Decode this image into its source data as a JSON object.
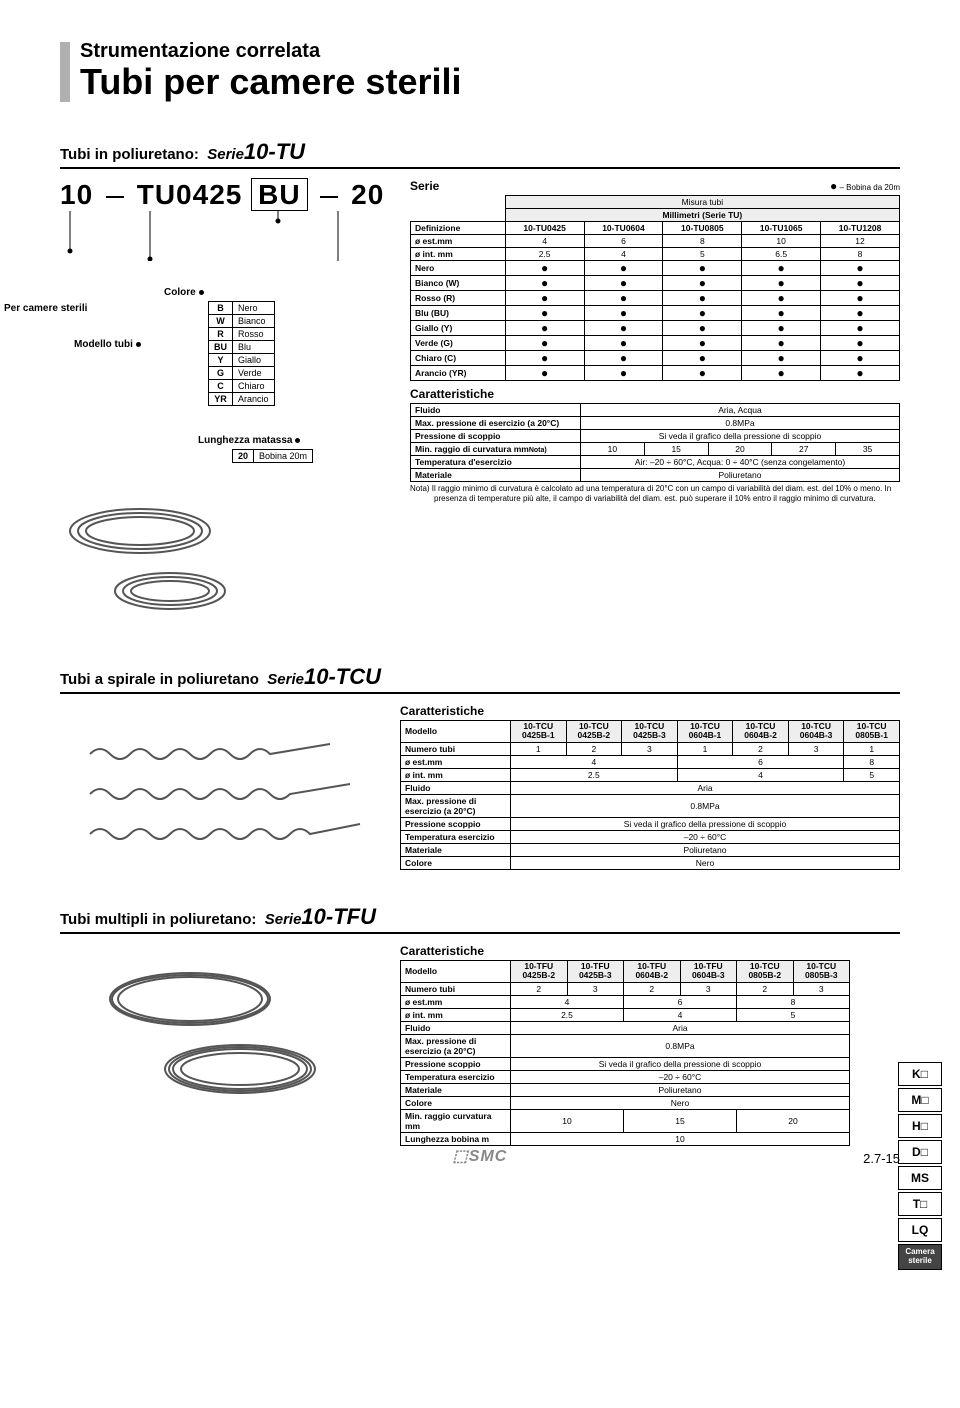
{
  "header": {
    "supertitle": "Strumentazione correlata",
    "title": "Tubi per camere sterili"
  },
  "section1": {
    "heading_prefix": "Tubi in poliuretano:",
    "series_label": "Serie",
    "series_code": "10-TU",
    "partcode": {
      "a": "10",
      "b": "TU0425",
      "c": "BU",
      "d": "20"
    },
    "callouts": {
      "per_camere": "Per camere sterili",
      "modello": "Modello tubi",
      "colore": "Colore",
      "lunghezza": "Lunghezza matassa"
    },
    "color_table": {
      "rows": [
        [
          "B",
          "Nero"
        ],
        [
          "W",
          "Bianco"
        ],
        [
          "R",
          "Rosso"
        ],
        [
          "BU",
          "Blu"
        ],
        [
          "Y",
          "Giallo"
        ],
        [
          "G",
          "Verde"
        ],
        [
          "C",
          "Chiaro"
        ],
        [
          "YR",
          "Arancio"
        ]
      ]
    },
    "length_table": {
      "rows": [
        [
          "20",
          "Bobina 20m"
        ]
      ]
    },
    "serie_table": {
      "title": "Serie",
      "bobina_note": "– Bobina da 20m",
      "misura": "Misura tubi",
      "millimetri": "Millimetri (Serie  TU)",
      "cols": [
        "10-TU0425",
        "10-TU0604",
        "10-TU0805",
        "10-TU1065",
        "10-TU1208"
      ],
      "definizione": "Definizione",
      "est": "ø est.mm",
      "est_vals": [
        "4",
        "6",
        "8",
        "10",
        "12"
      ],
      "int": "ø int. mm",
      "int_vals": [
        "2.5",
        "4",
        "5",
        "6.5",
        "8"
      ],
      "color_rows": [
        "Nero",
        "Bianco (W)",
        "Rosso (R)",
        "Blu (BU)",
        "Giallo (Y)",
        "Verde (G)",
        "Chiaro (C)",
        "Arancio (YR)"
      ]
    },
    "char_table": {
      "title": "Caratteristiche",
      "rows": [
        {
          "h": "Fluido",
          "span": "Aria, Acqua"
        },
        {
          "h": "Max. pressione di esercizio (a 20°C)",
          "span": "0.8MPa"
        },
        {
          "h": "Pressione di scoppio",
          "span": "Si veda il grafico della pressione di scoppio"
        },
        {
          "h": "Min. raggio di curvatura  mm",
          "sup": "Nota)",
          "vals": [
            "10",
            "15",
            "20",
            "27",
            "35"
          ]
        },
        {
          "h": "Temperatura d'esercizio",
          "span": "Air: –20 ÷ 60°C, Acqua: 0 ÷ 40°C (senza congelamento)"
        },
        {
          "h": "Materiale",
          "span": "Poliuretano"
        }
      ],
      "note": "Nota) Il raggio minimo di curvatura è calcolato ad una temperatura di 20°C con un campo di variabilità del diam. est. del 10% o meno. In presenza di temperature più alte, il campo di variabilità del diam. est. può superare il 10% entro il raggio minimo di curvatura."
    }
  },
  "section2": {
    "heading_prefix": "Tubi a spirale in poliuretano",
    "series_label": "Serie",
    "series_code": "10-TCU",
    "char_title": "Caratteristiche",
    "modello": "Modello",
    "cols": [
      "10-TCU 0425B-1",
      "10-TCU 0425B-2",
      "10-TCU 0425B-3",
      "10-TCU 0604B-1",
      "10-TCU 0604B-2",
      "10-TCU 0604B-3",
      "10-TCU 0805B-1"
    ],
    "rows": [
      {
        "h": "Numero tubi",
        "vals": [
          "1",
          "2",
          "3",
          "1",
          "2",
          "3",
          "1"
        ]
      },
      {
        "h": "ø est.mm",
        "spans": [
          {
            "v": "4",
            "c": 3
          },
          {
            "v": "6",
            "c": 3
          },
          {
            "v": "8",
            "c": 1
          }
        ]
      },
      {
        "h": "ø int. mm",
        "spans": [
          {
            "v": "2.5",
            "c": 3
          },
          {
            "v": "4",
            "c": 3
          },
          {
            "v": "5",
            "c": 1
          }
        ]
      },
      {
        "h": "Fluido",
        "full": "Aria"
      },
      {
        "h": "Max. pressione di esercizio (a 20°C)",
        "full": "0.8MPa"
      },
      {
        "h": "Pressione scoppio",
        "full": "Si veda il grafico della pressione di scoppio"
      },
      {
        "h": "Temperatura esercizio",
        "full": "–20 ÷ 60°C"
      },
      {
        "h": "Materiale",
        "full": "Poliuretano"
      },
      {
        "h": "Colore",
        "full": "Nero"
      }
    ]
  },
  "section3": {
    "heading_prefix": "Tubi multipli in poliuretano:",
    "series_label": "Serie",
    "series_code": "10-TFU",
    "char_title": "Caratteristiche",
    "modello": "Modello",
    "cols": [
      "10-TFU 0425B-2",
      "10-TFU 0425B-3",
      "10-TFU 0604B-2",
      "10-TFU 0604B-3",
      "10-TCU 0805B-2",
      "10-TCU 0805B-3"
    ],
    "rows": [
      {
        "h": "Numero tubi",
        "vals": [
          "2",
          "3",
          "2",
          "3",
          "2",
          "3"
        ]
      },
      {
        "h": "ø est.mm",
        "spans": [
          {
            "v": "4",
            "c": 2
          },
          {
            "v": "6",
            "c": 2
          },
          {
            "v": "8",
            "c": 2
          }
        ]
      },
      {
        "h": "ø int. mm",
        "spans": [
          {
            "v": "2.5",
            "c": 2
          },
          {
            "v": "4",
            "c": 2
          },
          {
            "v": "5",
            "c": 2
          }
        ]
      },
      {
        "h": "Fluido",
        "full": "Aria"
      },
      {
        "h": "Max. pressione di esercizio (a 20°C)",
        "full": "0.8MPa"
      },
      {
        "h": "Pressione scoppio",
        "full": "Si veda il grafico della pressione di scoppio"
      },
      {
        "h": "Temperatura esercizio",
        "full": "–20 ÷ 60°C"
      },
      {
        "h": "Materiale",
        "full": "Poliuretano"
      },
      {
        "h": "Colore",
        "full": "Nero"
      },
      {
        "h": "Min. raggio curvatura  mm",
        "spans": [
          {
            "v": "10",
            "c": 2
          },
          {
            "v": "15",
            "c": 2
          },
          {
            "v": "20",
            "c": 2
          }
        ]
      },
      {
        "h": "Lunghezza bobina m",
        "full": "10"
      }
    ]
  },
  "sidetabs": [
    "K□",
    "M□",
    "H□",
    "D□",
    "MS",
    "T□",
    "LQ"
  ],
  "sidetab_active": "Camera sterile",
  "pagenum": "2.7-15",
  "logo": "SMC"
}
